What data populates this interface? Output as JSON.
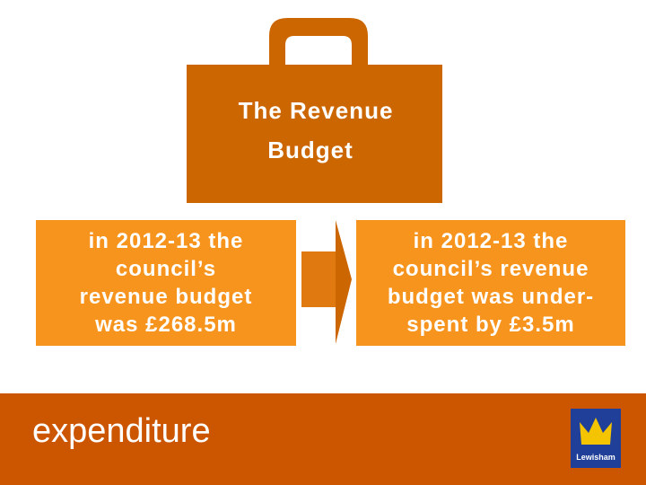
{
  "briefcase": {
    "title_line1": "The Revenue",
    "title_line2": "Budget"
  },
  "left_box": {
    "lines": [
      "in 2012-13 the",
      "council’s",
      "revenue budget",
      "was £268.5m"
    ]
  },
  "right_box": {
    "lines": [
      "in 2012-13 the",
      "council’s revenue",
      "budget was under-",
      "spent by £3.5m"
    ]
  },
  "footer": {
    "label": "expenditure",
    "logo_text": "Lewisham"
  }
}
